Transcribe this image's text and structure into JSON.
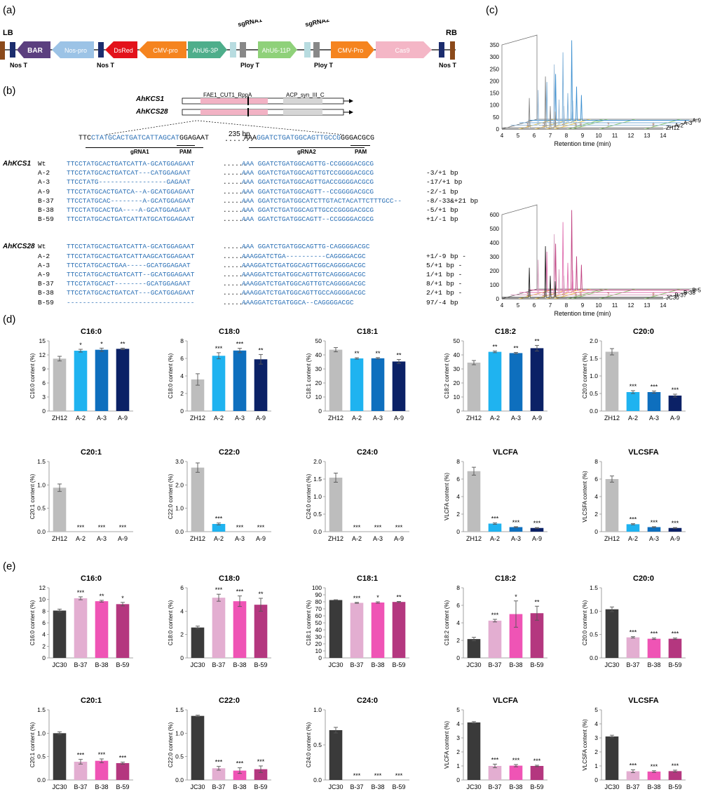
{
  "panels": {
    "a": "(a)",
    "b": "(b)",
    "c": "(c)",
    "d": "(d)",
    "e": "(e)"
  },
  "construct": {
    "lb": "LB",
    "rb": "RB",
    "elements": [
      "BAR",
      "Nos-pro",
      "DsRed",
      "CMV-pro",
      "AhU6-3P",
      "AhU6-11P",
      "CMV-Pro",
      "Cas9"
    ],
    "top_labels": [
      "sgRNA1",
      "sgRNA2"
    ],
    "bottom_labels": [
      "Nos T",
      "Nos T",
      "Ploy T",
      "Ploy T",
      "Nos T"
    ],
    "colors": {
      "BAR": "#5b3f7f",
      "Nos-pro": "#9cc3e6",
      "DsRed": "#e3121b",
      "CMV-pro": "#f5841f",
      "AhU6": "#4eae8b",
      "AhU6-11P": "#8fd17a",
      "Cas9": "#f4b6c6",
      "border": "#8b4a1b",
      "term": "#1c2d6e",
      "sgRNA": "#b8dce0",
      "gray": "#888888"
    }
  },
  "genes": {
    "names": [
      "AhKCS1",
      "AhKCS28"
    ],
    "domains": [
      "FAE1_CUT1_RppA",
      "ACP_syn_III_C"
    ],
    "ref_seq_left": "TTC",
    "ref_seq_left_blue": "CTATGCACTGATCATTAGCAT",
    "ref_seq_left_tail": "GGAGAAT",
    "gap_label": "235 bp",
    "ref_seq_right": "AAA",
    "ref_seq_right_blue": "GGATCTGATGGCAGTTGCCG",
    "ref_seq_right_tail": "GGGACGCG",
    "grna1": "gRNA1",
    "pam": "PAM",
    "grna2": "gRNA2"
  },
  "alignments": [
    {
      "gene": "AhKCS1",
      "rows": [
        {
          "id": "Wt",
          "left": "TTCCTATGCACTGATCATTA-GCATGGAGAAT",
          "right": "AAA GGATCTGATGGCAGTTG-CCGGGGACGCG",
          "note": ""
        },
        {
          "id": "A-2",
          "left": "TTCCTATGCACTGATCAT---CATGGAGAAT",
          "right": "AAA GGATCTGATGGCAGTTGTCCGGGGACGCG",
          "note": "-3/+1 bp"
        },
        {
          "id": "A-3",
          "left": "TTCCTATG-----------------GAGAAT",
          "right": "AAA GGATCTGATGGCAGTTGACCGGGGACGCG",
          "note": "-17/+1 bp"
        },
        {
          "id": "A-9",
          "left": "TTCCTATGCACTGATCA--A-GCATGGAGAAT",
          "right": "AAA GGATCTGATGGCAGTT--CCGGGGACGCG",
          "note": "-2/-1 bp"
        },
        {
          "id": "B-37",
          "left": "TTCCTATGCAC--------A-GCATGGAGAAT",
          "right": "AAA GGATCTGATGGCATCTTGTACTACATTCTTTGCC--",
          "note": "-8/-33&+21 bp"
        },
        {
          "id": "B-38",
          "left": "TTCCTATGCACTGA----A-GCATGGAGAAT",
          "right": "AAA GGATCTGATGGCAGTTGCCCGGGGACGCG",
          "note": "-5/+1 bp"
        },
        {
          "id": "B-59",
          "left": "TTCCTATGCACTGATCATTATGCATGGAGAAT",
          "right": "AAA GGATCTGATGGCAGTT--CCGGGGACGCG",
          "note": "+1/-1 bp"
        }
      ]
    },
    {
      "gene": "AhKCS28",
      "rows": [
        {
          "id": "Wt",
          "left": "TTCCTATGCACTGATCATTA-GCATGGAGAAT",
          "right": "AAA GGATCTGATGGCAGTTG-CAGGGGACGC",
          "note": ""
        },
        {
          "id": "A-2",
          "left": "TTCCTATGCACTGATCATTAAGCATGGAGAAT",
          "right": "AAAGGATCTGA----------CAGGGGACGC",
          "note": "+1/-9 bp -"
        },
        {
          "id": "A-3",
          "left": "TTCCTATGCACTGAA-----GCATGGAGAAT",
          "right": "AAAGGATCTGATGGCAGTTGGCAGGGGACGC",
          "note": "5/+1 bp -"
        },
        {
          "id": "A-9",
          "left": "TTCCTATGCACTGATCATT--GCATGGAGAAT",
          "right": "AAAGGATCTGATGGCAGTTGTCAGGGGACGC",
          "note": "1/+1 bp -"
        },
        {
          "id": "B-37",
          "left": "TTCCTATGCACT--------GCATGGAGAAT",
          "right": "AAAGGATCTGATGGCAGTTGTCAGGGGACGC",
          "note": "8/+1 bp -"
        },
        {
          "id": "B-38",
          "left": "TTCCTATGCACTGATCAT---GCATGGAGAAT",
          "right": "AAAGGATCTGATGGCAGTTGCCAGGGGACGC",
          "note": "2/+1 bp -"
        },
        {
          "id": "B-59",
          "left": "--------------------------------",
          "right": "AAAGGATCTGATGGCA--CAGGGGACGC",
          "note": "97/-4 bp"
        }
      ]
    }
  ],
  "chromatograms": [
    {
      "samples": [
        "A-9",
        "A-3",
        "A-2",
        "ZH12"
      ],
      "yticks": [
        "0",
        "50",
        "100",
        "150",
        "200",
        "250",
        "300",
        "350"
      ],
      "ymax": 350,
      "xlabel": "Retention time (min)",
      "xticks": [
        "4",
        "5",
        "6",
        "7",
        "8",
        "9",
        "10",
        "11",
        "12",
        "13",
        "14"
      ],
      "peak_ids": [
        "1",
        "2",
        "3",
        "4",
        "5",
        "6",
        "7",
        "8"
      ],
      "colors": [
        "#3b8fd0",
        "#7aaed8",
        "#9bbbd8",
        "#888888"
      ]
    },
    {
      "samples": [
        "B-59",
        "B-38",
        "B-37",
        "JC30"
      ],
      "yticks": [
        "0",
        "100",
        "200",
        "300",
        "400",
        "500",
        "600"
      ],
      "ymax": 600,
      "xlabel": "Retention time (min)",
      "xticks": [
        "4",
        "5",
        "6",
        "7",
        "8",
        "9",
        "10",
        "11",
        "12",
        "13",
        "14"
      ],
      "peak_ids": [
        "1",
        "2",
        "3",
        "4",
        "5",
        "6",
        "7",
        "8"
      ],
      "colors": [
        "#c04080",
        "#e070b0",
        "#d8a0c0",
        "#222222"
      ]
    }
  ],
  "colors": {
    "d": [
      "#bdbdbd",
      "#1fb3f0",
      "#0e6fbe",
      "#0b2166"
    ],
    "e": [
      "#3a3a3a",
      "#e3aed1",
      "#ef54b5",
      "#b4377f"
    ]
  },
  "chart_data": [
    {
      "type": "bar",
      "panel": "d",
      "title": "C16:0",
      "ylabel": "C16:0 content (%)",
      "categories": [
        "ZH12",
        "A-2",
        "A-3",
        "A-9"
      ],
      "values": [
        11.2,
        12.9,
        13.1,
        13.3
      ],
      "errors": [
        0.5,
        0.3,
        0.35,
        0.15
      ],
      "sig": [
        "",
        "*",
        "*",
        "**"
      ],
      "ylim": [
        0,
        15
      ],
      "yticks": [
        "0",
        "3",
        "6",
        "9",
        "12",
        "15"
      ]
    },
    {
      "type": "bar",
      "panel": "d",
      "title": "C18:0",
      "ylabel": "C18:0 content (%)",
      "categories": [
        "ZH12",
        "A-2",
        "A-3",
        "A-9"
      ],
      "values": [
        3.6,
        6.3,
        6.9,
        5.9
      ],
      "errors": [
        0.65,
        0.35,
        0.25,
        0.55
      ],
      "sig": [
        "",
        "***",
        "***",
        "**"
      ],
      "ylim": [
        0,
        8
      ],
      "yticks": [
        "0",
        "2",
        "4",
        "6",
        "8"
      ]
    },
    {
      "type": "bar",
      "panel": "d",
      "title": "C18:1",
      "ylabel": "C18:1 content (%)",
      "categories": [
        "ZH12",
        "A-2",
        "A-3",
        "A-9"
      ],
      "values": [
        43.7,
        37.5,
        37.6,
        35.3
      ],
      "errors": [
        1.5,
        0.5,
        0.5,
        1.4
      ],
      "sig": [
        "",
        "**",
        "**",
        "**"
      ],
      "ylim": [
        0,
        50
      ],
      "yticks": [
        "0",
        "10",
        "20",
        "30",
        "40",
        "50"
      ]
    },
    {
      "type": "bar",
      "panel": "d",
      "title": "C18:2",
      "ylabel": "C18:2 content (%)",
      "categories": [
        "ZH12",
        "A-2",
        "A-3",
        "A-9"
      ],
      "values": [
        34.5,
        42.2,
        41.3,
        44.8
      ],
      "errors": [
        1.5,
        0.6,
        0.5,
        2.0
      ],
      "sig": [
        "",
        "**",
        "**",
        "**"
      ],
      "ylim": [
        0,
        50
      ],
      "yticks": [
        "0",
        "10",
        "20",
        "30",
        "40",
        "50"
      ]
    },
    {
      "type": "bar",
      "panel": "d",
      "title": "C20:0",
      "ylabel": "C20:0 content (%)",
      "categories": [
        "ZH12",
        "A-2",
        "A-3",
        "A-9"
      ],
      "values": [
        1.69,
        0.54,
        0.54,
        0.44
      ],
      "errors": [
        0.09,
        0.04,
        0.03,
        0.04
      ],
      "sig": [
        "",
        "***",
        "***",
        "***"
      ],
      "ylim": [
        0,
        2.0
      ],
      "yticks": [
        "0.0",
        "0.5",
        "1.0",
        "1.5",
        "2.0"
      ]
    },
    {
      "type": "bar",
      "panel": "d",
      "title": "C20:1",
      "ylabel": "C20:1 content (%)",
      "categories": [
        "ZH12",
        "A-2",
        "A-3",
        "A-9"
      ],
      "values": [
        0.94,
        0,
        0,
        0
      ],
      "errors": [
        0.08,
        0,
        0,
        0
      ],
      "sig": [
        "",
        "***",
        "***",
        "***"
      ],
      "ylim": [
        0,
        1.5
      ],
      "yticks": [
        "0.0",
        "0.5",
        "1.0",
        "1.5"
      ]
    },
    {
      "type": "bar",
      "panel": "d",
      "title": "C22:0",
      "ylabel": "C22:0 content (%)",
      "categories": [
        "ZH12",
        "A-2",
        "A-3",
        "A-9"
      ],
      "values": [
        2.74,
        0.33,
        0,
        0
      ],
      "errors": [
        0.2,
        0.04,
        0,
        0
      ],
      "sig": [
        "",
        "***",
        "***",
        "***"
      ],
      "ylim": [
        0,
        3.0
      ],
      "yticks": [
        "0.0",
        "1.0",
        "2.0",
        "3.0"
      ]
    },
    {
      "type": "bar",
      "panel": "d",
      "title": "C24:0",
      "ylabel": "C24:0 content (%)",
      "categories": [
        "ZH12",
        "A-2",
        "A-3",
        "A-9"
      ],
      "values": [
        1.54,
        0,
        0,
        0
      ],
      "errors": [
        0.13,
        0,
        0,
        0
      ],
      "sig": [
        "",
        "***",
        "***",
        "***"
      ],
      "ylim": [
        0,
        2.0
      ],
      "yticks": [
        "0.0",
        "0.5",
        "1.0",
        "1.5",
        "2.0"
      ]
    },
    {
      "type": "bar",
      "panel": "d",
      "title": "VLCFA",
      "ylabel": "VLCFA content (%)",
      "categories": [
        "ZH12",
        "A-2",
        "A-3",
        "A-9"
      ],
      "values": [
        6.9,
        0.92,
        0.52,
        0.42
      ],
      "errors": [
        0.45,
        0.08,
        0.05,
        0.05
      ],
      "sig": [
        "",
        "***",
        "***",
        "***"
      ],
      "ylim": [
        0,
        8
      ],
      "yticks": [
        "0",
        "2",
        "4",
        "6",
        "8"
      ]
    },
    {
      "type": "bar",
      "panel": "d",
      "title": "VLCSFA",
      "ylabel": "VLCSFA content (%)",
      "categories": [
        "ZH12",
        "A-2",
        "A-3",
        "A-9"
      ],
      "values": [
        6.0,
        0.85,
        0.52,
        0.42
      ],
      "errors": [
        0.35,
        0.06,
        0.05,
        0.05
      ],
      "sig": [
        "",
        "***",
        "***",
        "***"
      ],
      "ylim": [
        0,
        8
      ],
      "yticks": [
        "0",
        "2",
        "4",
        "6",
        "8"
      ]
    },
    {
      "type": "bar",
      "panel": "e",
      "title": "C16:0",
      "ylabel": "C16:0 content (%)",
      "categories": [
        "JC30",
        "B-37",
        "B-38",
        "B-59"
      ],
      "values": [
        8.1,
        10.2,
        9.7,
        9.2
      ],
      "errors": [
        0.25,
        0.25,
        0.15,
        0.3
      ],
      "sig": [
        "",
        "***",
        "**",
        "*"
      ],
      "ylim": [
        0,
        12
      ],
      "yticks": [
        "0",
        "2",
        "4",
        "6",
        "8",
        "10",
        "12"
      ]
    },
    {
      "type": "bar",
      "panel": "e",
      "title": "C18:0",
      "ylabel": "C18:0 content (%)",
      "categories": [
        "JC30",
        "B-37",
        "B-38",
        "B-59"
      ],
      "values": [
        2.6,
        5.15,
        4.85,
        4.55
      ],
      "errors": [
        0.12,
        0.3,
        0.45,
        0.55
      ],
      "sig": [
        "",
        "***",
        "***",
        "**"
      ],
      "ylim": [
        0,
        6
      ],
      "yticks": [
        "0",
        "2",
        "4",
        "6"
      ]
    },
    {
      "type": "bar",
      "panel": "e",
      "title": "C18:1",
      "ylabel": "C18:1 content (%)",
      "categories": [
        "JC30",
        "B-37",
        "B-38",
        "B-59"
      ],
      "values": [
        82.5,
        78.5,
        79.0,
        79.8
      ],
      "errors": [
        0.4,
        0.6,
        1.0,
        0.7
      ],
      "sig": [
        "",
        "***",
        "*",
        "**"
      ],
      "ylim": [
        0,
        100
      ],
      "yticks": [
        "0",
        "10",
        "20",
        "30",
        "40",
        "50",
        "60",
        "70",
        "80",
        "90",
        "100"
      ]
    },
    {
      "type": "bar",
      "panel": "e",
      "title": "C18:2",
      "ylabel": "C18:2 content (%)",
      "categories": [
        "JC30",
        "B-37",
        "B-38",
        "B-59"
      ],
      "values": [
        2.15,
        4.25,
        5.0,
        5.1
      ],
      "errors": [
        0.2,
        0.15,
        1.5,
        0.8
      ],
      "sig": [
        "",
        "***",
        "*",
        "**"
      ],
      "ylim": [
        0,
        8
      ],
      "yticks": [
        "0",
        "2",
        "4",
        "6",
        "8"
      ]
    },
    {
      "type": "bar",
      "panel": "e",
      "title": "C20:0",
      "ylabel": "C20:0 content (%)",
      "categories": [
        "JC30",
        "B-37",
        "B-38",
        "B-59"
      ],
      "values": [
        1.04,
        0.44,
        0.41,
        0.41
      ],
      "errors": [
        0.05,
        0.015,
        0.015,
        0.015
      ],
      "sig": [
        "",
        "***",
        "***",
        "***"
      ],
      "ylim": [
        0,
        1.5
      ],
      "yticks": [
        "0.0",
        "0.5",
        "1.0",
        "1.5"
      ]
    },
    {
      "type": "bar",
      "panel": "e",
      "title": "C20:1",
      "ylabel": "C20:1 content (%)",
      "categories": [
        "JC30",
        "B-37",
        "B-38",
        "B-59"
      ],
      "values": [
        1.0,
        0.39,
        0.41,
        0.36
      ],
      "errors": [
        0.03,
        0.05,
        0.04,
        0.02
      ],
      "sig": [
        "",
        "***",
        "***",
        "***"
      ],
      "ylim": [
        0,
        1.5
      ],
      "yticks": [
        "0.0",
        "0.5",
        "1.0",
        "1.5"
      ]
    },
    {
      "type": "bar",
      "panel": "e",
      "title": "C22:0",
      "ylabel": "C22:0 content (%)",
      "categories": [
        "JC30",
        "B-37",
        "B-38",
        "B-59"
      ],
      "values": [
        1.37,
        0.25,
        0.2,
        0.23
      ],
      "errors": [
        0.015,
        0.04,
        0.06,
        0.07
      ],
      "sig": [
        "",
        "***",
        "***",
        "***"
      ],
      "ylim": [
        0,
        1.5
      ],
      "yticks": [
        "0.0",
        "0.5",
        "1.0",
        "1.5"
      ]
    },
    {
      "type": "bar",
      "panel": "e",
      "title": "C24:0",
      "ylabel": "C24:0 content (%)",
      "categories": [
        "JC30",
        "B-37",
        "B-38",
        "B-59"
      ],
      "values": [
        0.71,
        0,
        0,
        0
      ],
      "errors": [
        0.04,
        0,
        0,
        0
      ],
      "sig": [
        "",
        "***",
        "***",
        "***"
      ],
      "ylim": [
        0,
        1.0
      ],
      "yticks": [
        "0.0",
        "0.5",
        "1.0"
      ]
    },
    {
      "type": "bar",
      "panel": "e",
      "title": "VLCFA",
      "ylabel": "VLCFA content (%)",
      "categories": [
        "JC30",
        "B-37",
        "B-38",
        "B-59"
      ],
      "values": [
        4.1,
        1.0,
        1.02,
        1.0
      ],
      "errors": [
        0.06,
        0.13,
        0.08,
        0.05
      ],
      "sig": [
        "",
        "***",
        "***",
        "***"
      ],
      "ylim": [
        0,
        5
      ],
      "yticks": [
        "0",
        "1",
        "2",
        "3",
        "4",
        "5"
      ]
    },
    {
      "type": "bar",
      "panel": "e",
      "title": "VLCSFA",
      "ylabel": "VLCSFA content (%)",
      "categories": [
        "JC30",
        "B-37",
        "B-38",
        "B-59"
      ],
      "values": [
        3.1,
        0.62,
        0.6,
        0.63
      ],
      "errors": [
        0.09,
        0.1,
        0.06,
        0.07
      ],
      "sig": [
        "",
        "***",
        "***",
        "***"
      ],
      "ylim": [
        0,
        5
      ],
      "yticks": [
        "0",
        "1",
        "2",
        "3",
        "4",
        "5"
      ]
    }
  ]
}
